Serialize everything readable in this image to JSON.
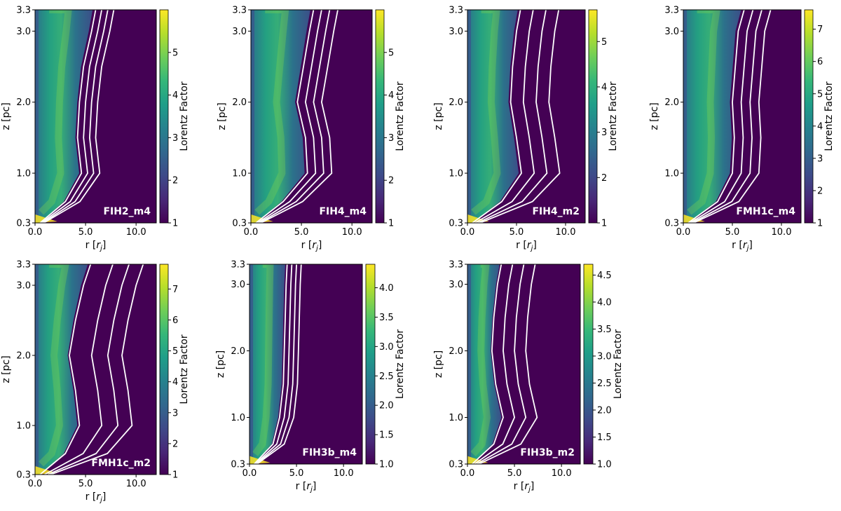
{
  "figure": {
    "colorbar_label": "Lorentz Factor",
    "xlabel": "r [r_j]",
    "ylabel": "z [pc]",
    "colormap": "viridis",
    "colors": {
      "contour": "#ffffff",
      "background": "#440154",
      "high": "#fde725"
    }
  },
  "chart_data": [
    {
      "type": "heatmap",
      "label": "FIH2_m4",
      "xlabel": "r [r_j]",
      "ylabel": "z [pc]",
      "xlim": [
        0,
        12
      ],
      "ylim": [
        0.3,
        3.3
      ],
      "xticks": [
        "0.0",
        "5.0",
        "10.0"
      ],
      "xtick_values": [
        0,
        5,
        10
      ],
      "yticks": [
        "0.3",
        "1.0",
        "2.0",
        "3.0",
        "3.3"
      ],
      "ytick_values": [
        0.3,
        1.0,
        2.0,
        3.0,
        3.3
      ],
      "colorbar": {
        "label": "Lorentz Factor",
        "min": 1,
        "max": 6.0,
        "ticks": [
          "1",
          "2",
          "3",
          "4",
          "5"
        ],
        "tick_values": [
          1,
          2,
          3,
          4,
          5
        ]
      },
      "jet_edge": {
        "z": [
          0.3,
          0.6,
          1.0,
          1.5,
          2.0,
          2.5,
          3.0,
          3.3
        ],
        "r": [
          0.5,
          3.0,
          4.6,
          4.2,
          4.4,
          4.8,
          5.6,
          6.0
        ]
      },
      "contour_offsets": [
        0,
        0.6,
        1.2,
        1.8
      ]
    },
    {
      "type": "heatmap",
      "label": "FIH4_m4",
      "xlabel": "r [r_j]",
      "ylabel": "z [pc]",
      "xlim": [
        0,
        12
      ],
      "ylim": [
        0.3,
        3.3
      ],
      "xticks": [
        "0.0",
        "5.0",
        "10.0"
      ],
      "xtick_values": [
        0,
        5,
        10
      ],
      "yticks": [
        "0.3",
        "1.0",
        "2.0",
        "3.0",
        "3.3"
      ],
      "ytick_values": [
        0.3,
        1.0,
        2.0,
        3.0,
        3.3
      ],
      "colorbar": {
        "label": "Lorentz Factor",
        "min": 1,
        "max": 6.0,
        "ticks": [
          "1",
          "2",
          "3",
          "4",
          "5"
        ],
        "tick_values": [
          1,
          2,
          3,
          4,
          5
        ]
      },
      "jet_edge": {
        "z": [
          0.3,
          0.6,
          1.0,
          1.5,
          2.0,
          2.5,
          3.0,
          3.3
        ],
        "r": [
          0.5,
          3.2,
          5.6,
          5.4,
          4.6,
          5.2,
          5.8,
          6.2
        ]
      },
      "contour_offsets": [
        0,
        0.8,
        1.6,
        2.4
      ]
    },
    {
      "type": "heatmap",
      "label": "FIH4_m2",
      "xlabel": "r [r_j]",
      "ylabel": "z [pc]",
      "xlim": [
        0,
        12
      ],
      "ylim": [
        0.3,
        3.3
      ],
      "xticks": [
        "0.0",
        "5.0",
        "10.0"
      ],
      "xtick_values": [
        0,
        5,
        10
      ],
      "yticks": [
        "0.3",
        "1.0",
        "2.0",
        "3.0",
        "3.3"
      ],
      "ytick_values": [
        0.3,
        1.0,
        2.0,
        3.0,
        3.3
      ],
      "colorbar": {
        "label": "Lorentz Factor",
        "min": 1,
        "max": 5.7,
        "ticks": [
          "1",
          "2",
          "3",
          "4",
          "5"
        ],
        "tick_values": [
          1,
          2,
          3,
          4,
          5
        ]
      },
      "jet_edge": {
        "z": [
          0.3,
          0.6,
          1.0,
          1.5,
          2.0,
          2.5,
          3.0,
          3.3
        ],
        "r": [
          0.5,
          3.5,
          5.5,
          5.0,
          4.4,
          4.6,
          5.0,
          5.4
        ]
      },
      "contour_offsets": [
        0,
        1.3,
        2.6,
        3.9
      ]
    },
    {
      "type": "heatmap",
      "label": "FMH1c_m4",
      "xlabel": "r [r_j]",
      "ylabel": "z [pc]",
      "xlim": [
        0,
        12
      ],
      "ylim": [
        0.3,
        3.3
      ],
      "xticks": [
        "0.0",
        "5.0",
        "10.0"
      ],
      "xtick_values": [
        0,
        5,
        10
      ],
      "yticks": [
        "0.3",
        "1.0",
        "2.0",
        "3.0",
        "3.3"
      ],
      "ytick_values": [
        0.3,
        1.0,
        2.0,
        3.0,
        3.3
      ],
      "colorbar": {
        "label": "Lorentz Factor",
        "min": 1,
        "max": 7.6,
        "ticks": [
          "1",
          "2",
          "3",
          "4",
          "5",
          "6",
          "7"
        ],
        "tick_values": [
          1,
          2,
          3,
          4,
          5,
          6,
          7
        ]
      },
      "jet_edge": {
        "z": [
          0.3,
          0.6,
          1.0,
          1.5,
          2.0,
          2.5,
          3.0,
          3.3
        ],
        "r": [
          0.5,
          3.5,
          5.0,
          5.2,
          5.0,
          5.3,
          5.6,
          6.2
        ]
      },
      "contour_offsets": [
        0,
        0.9,
        1.8,
        2.7
      ]
    },
    {
      "type": "heatmap",
      "label": "FMH1c_m2",
      "xlabel": "r [r_j]",
      "ylabel": "z [pc]",
      "xlim": [
        0,
        12
      ],
      "ylim": [
        0.3,
        3.3
      ],
      "xticks": [
        "0.0",
        "5.0",
        "10.0"
      ],
      "xtick_values": [
        0,
        5,
        10
      ],
      "yticks": [
        "0.3",
        "1.0",
        "2.0",
        "3.0",
        "3.3"
      ],
      "ytick_values": [
        0.3,
        1.0,
        2.0,
        3.0,
        3.3
      ],
      "colorbar": {
        "label": "Lorentz Factor",
        "min": 1,
        "max": 7.8,
        "ticks": [
          "1",
          "2",
          "3",
          "4",
          "5",
          "6",
          "7"
        ],
        "tick_values": [
          1,
          2,
          3,
          4,
          5,
          6,
          7
        ]
      },
      "jet_edge": {
        "z": [
          0.3,
          0.6,
          1.0,
          1.5,
          2.0,
          2.5,
          3.0,
          3.3
        ],
        "r": [
          0.5,
          3.0,
          4.4,
          4.0,
          3.4,
          4.0,
          4.8,
          5.5
        ]
      },
      "contour_offsets": [
        0,
        2.2,
        3.8,
        5.2
      ]
    },
    {
      "type": "heatmap",
      "label": "FIH3b_m4",
      "xlabel": "r [r_j]",
      "ylabel": "z [pc]",
      "xlim": [
        0,
        12
      ],
      "ylim": [
        0.3,
        3.3
      ],
      "xticks": [
        "0.0",
        "5.0",
        "10.0"
      ],
      "xtick_values": [
        0,
        5,
        10
      ],
      "yticks": [
        "0.3",
        "1.0",
        "2.0",
        "3.0",
        "3.3"
      ],
      "ytick_values": [
        0.3,
        1.0,
        2.0,
        3.0,
        3.3
      ],
      "colorbar": {
        "label": "Lorentz Factor",
        "min": 1.0,
        "max": 4.4,
        "ticks": [
          "1.0",
          "1.5",
          "2.0",
          "2.5",
          "3.0",
          "3.5",
          "4.0"
        ],
        "tick_values": [
          1.0,
          1.5,
          2.0,
          2.5,
          3.0,
          3.5,
          4.0
        ]
      },
      "jet_edge": {
        "z": [
          0.3,
          0.6,
          1.0,
          1.5,
          2.0,
          2.5,
          3.0,
          3.3
        ],
        "r": [
          0.5,
          2.5,
          3.2,
          3.6,
          3.7,
          3.8,
          3.9,
          4.0
        ]
      },
      "contour_offsets": [
        0,
        0.5,
        1.0,
        1.5
      ]
    },
    {
      "type": "heatmap",
      "label": "FIH3b_m2",
      "xlabel": "r [r_j]",
      "ylabel": "z [pc]",
      "xlim": [
        0,
        12
      ],
      "ylim": [
        0.3,
        3.3
      ],
      "xticks": [
        "0.0",
        "5.0",
        "10.0"
      ],
      "xtick_values": [
        0,
        5,
        10
      ],
      "yticks": [
        "0.3",
        "1.0",
        "2.0",
        "3.0",
        "3.3"
      ],
      "ytick_values": [
        0.3,
        1.0,
        2.0,
        3.0,
        3.3
      ],
      "colorbar": {
        "label": "Lorentz Factor",
        "min": 1.0,
        "max": 4.7,
        "ticks": [
          "1.0",
          "1.5",
          "2.0",
          "2.5",
          "3.0",
          "3.5",
          "4.0",
          "4.5"
        ],
        "tick_values": [
          1.0,
          1.5,
          2.0,
          2.5,
          3.0,
          3.5,
          4.0,
          4.5
        ]
      },
      "jet_edge": {
        "z": [
          0.3,
          0.6,
          1.0,
          1.5,
          2.0,
          2.5,
          3.0,
          3.3
        ],
        "r": [
          0.5,
          2.8,
          3.8,
          3.0,
          2.6,
          2.8,
          3.2,
          3.6
        ]
      },
      "contour_offsets": [
        0,
        1.2,
        2.4,
        3.6
      ]
    }
  ]
}
